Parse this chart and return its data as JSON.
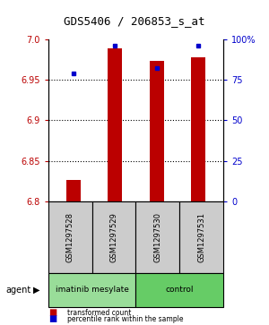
{
  "title": "GDS5406 / 206853_s_at",
  "samples": [
    "GSM1297528",
    "GSM1297529",
    "GSM1297530",
    "GSM1297531"
  ],
  "transformed_counts": [
    6.826,
    6.988,
    6.973,
    6.977
  ],
  "percentile_ranks": [
    79,
    96,
    82,
    96
  ],
  "ylim": [
    6.8,
    7.0
  ],
  "y_ticks": [
    6.8,
    6.85,
    6.9,
    6.95,
    7.0
  ],
  "y2_ticks": [
    0,
    25,
    50,
    75,
    100
  ],
  "y2_tick_labels": [
    "0",
    "25",
    "50",
    "75",
    "100%"
  ],
  "bar_color": "#bb0000",
  "percentile_color": "#0000cc",
  "agent_groups": [
    {
      "label": "imatinib mesylate",
      "color": "#99dd99",
      "start": 0,
      "end": 2
    },
    {
      "label": "control",
      "color": "#66cc66",
      "start": 2,
      "end": 4
    }
  ],
  "background_color": "#ffffff",
  "plot_bg_color": "#ffffff",
  "label_area_color": "#cccccc",
  "bar_base": 6.8,
  "legend_items": [
    {
      "label": "transformed count",
      "color": "#bb0000"
    },
    {
      "label": "percentile rank within the sample",
      "color": "#0000cc"
    }
  ]
}
